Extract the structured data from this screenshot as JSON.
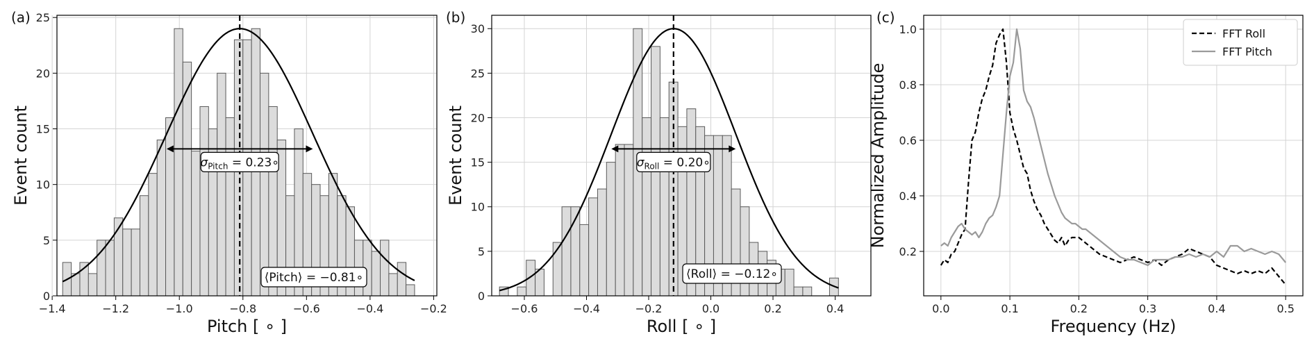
{
  "chart_data": [
    {
      "type": "bar",
      "panel_label": "(a)",
      "xlabel": "Pitch [ ∘ ]",
      "ylabel": "Event count",
      "xlim": [
        -1.385,
        -0.19
      ],
      "ylim": [
        0,
        25.2
      ],
      "xticks": [
        -1.4,
        -1.2,
        -1.0,
        -0.8,
        -0.6,
        -0.4,
        -0.2
      ],
      "xtick_labels": [
        "−1.4",
        "−1.2",
        "−1.0",
        "−0.8",
        "−0.6",
        "−0.4",
        "−0.2"
      ],
      "yticks": [
        0,
        5,
        10,
        15,
        20,
        25
      ],
      "ytick_labels": [
        "0",
        "5",
        "10",
        "15",
        "20",
        "25"
      ],
      "grid": true,
      "bin_start": -1.367,
      "bin_width": 0.027,
      "counts": [
        3,
        2,
        3,
        2,
        5,
        5,
        7,
        6,
        6,
        9,
        11,
        14,
        16,
        24,
        21,
        13,
        17,
        15,
        20,
        16,
        23,
        23,
        24,
        20,
        17,
        14,
        9,
        15,
        11,
        10,
        9,
        11,
        9,
        8,
        5,
        5,
        4,
        5,
        2,
        3,
        1
      ],
      "fit": {
        "mean": -0.81,
        "sigma": 0.23,
        "peak": 24
      },
      "mean_line": -0.81,
      "sigma_arrow": {
        "from": -1.04,
        "to": -0.58,
        "y": 13.2
      },
      "sigma_label": {
        "symbol": "σ",
        "sub": "Pitch",
        "text": " = 0.23∘"
      },
      "mean_label": "⟨Pitch⟩ = −0.81∘"
    },
    {
      "type": "bar",
      "panel_label": "(b)",
      "xlabel": "Roll [ ∘ ]",
      "ylabel": "Event count",
      "xlim": [
        -0.705,
        0.515
      ],
      "ylim": [
        0,
        31.5
      ],
      "xticks": [
        -0.6,
        -0.4,
        -0.2,
        0.0,
        0.2,
        0.4
      ],
      "xtick_labels": [
        "−0.6",
        "−0.4",
        "−0.2",
        "0.0",
        "0.2",
        "0.4"
      ],
      "yticks": [
        0,
        5,
        10,
        15,
        20,
        25,
        30
      ],
      "ytick_labels": [
        "0",
        "5",
        "10",
        "15",
        "20",
        "25",
        "30"
      ],
      "grid": true,
      "bin_start": -0.68,
      "bin_width": 0.0287,
      "counts": [
        1,
        0,
        1,
        4,
        3,
        0,
        6,
        10,
        10,
        8,
        11,
        12,
        15,
        17,
        17,
        30,
        20,
        28,
        20,
        24,
        19,
        21,
        19,
        18,
        18,
        18,
        12,
        10,
        6,
        5,
        4,
        3,
        3,
        1,
        1,
        0,
        0,
        2
      ],
      "fit": {
        "mean": -0.12,
        "sigma": 0.2,
        "peak": 30
      },
      "mean_line": -0.12,
      "sigma_arrow": {
        "from": -0.32,
        "to": 0.08,
        "y": 16.5
      },
      "sigma_label": {
        "symbol": "σ",
        "sub": "Roll",
        "text": " = 0.20∘"
      },
      "mean_label": "⟨Roll⟩ = −0.12∘"
    },
    {
      "type": "line",
      "panel_label": "(c)",
      "xlabel": "Frequency (Hz)",
      "ylabel": "Normalized Amplitude",
      "xlim": [
        -0.025,
        0.525
      ],
      "ylim": [
        0.04,
        1.05
      ],
      "xticks": [
        0.0,
        0.1,
        0.2,
        0.3,
        0.4,
        0.5
      ],
      "xtick_labels": [
        "0.0",
        "0.1",
        "0.2",
        "0.3",
        "0.4",
        "0.5"
      ],
      "yticks": [
        0.2,
        0.4,
        0.6,
        0.8,
        1.0
      ],
      "ytick_labels": [
        "0.2",
        "0.4",
        "0.6",
        "0.8",
        "1.0"
      ],
      "grid": true,
      "legend_position": "top-right",
      "series": [
        {
          "name": "FFT Roll",
          "style": "dashed",
          "color": "#000000",
          "x": [
            0.0,
            0.005,
            0.01,
            0.015,
            0.02,
            0.025,
            0.03,
            0.035,
            0.04,
            0.045,
            0.05,
            0.055,
            0.06,
            0.065,
            0.07,
            0.075,
            0.08,
            0.085,
            0.09,
            0.095,
            0.1,
            0.105,
            0.11,
            0.115,
            0.12,
            0.125,
            0.13,
            0.135,
            0.14,
            0.145,
            0.15,
            0.155,
            0.16,
            0.165,
            0.17,
            0.175,
            0.18,
            0.185,
            0.19,
            0.195,
            0.2,
            0.205,
            0.21,
            0.215,
            0.22,
            0.225,
            0.23,
            0.24,
            0.25,
            0.26,
            0.27,
            0.28,
            0.29,
            0.3,
            0.31,
            0.32,
            0.33,
            0.34,
            0.35,
            0.36,
            0.37,
            0.38,
            0.39,
            0.4,
            0.41,
            0.42,
            0.43,
            0.44,
            0.45,
            0.46,
            0.47,
            0.48,
            0.49,
            0.5
          ],
          "y": [
            0.15,
            0.17,
            0.16,
            0.19,
            0.2,
            0.23,
            0.26,
            0.28,
            0.45,
            0.6,
            0.63,
            0.7,
            0.75,
            0.78,
            0.83,
            0.87,
            0.95,
            0.98,
            1.0,
            0.88,
            0.7,
            0.64,
            0.6,
            0.55,
            0.5,
            0.48,
            0.42,
            0.38,
            0.35,
            0.33,
            0.3,
            0.28,
            0.26,
            0.24,
            0.23,
            0.25,
            0.22,
            0.24,
            0.25,
            0.25,
            0.25,
            0.24,
            0.23,
            0.22,
            0.21,
            0.2,
            0.19,
            0.18,
            0.17,
            0.16,
            0.17,
            0.18,
            0.17,
            0.16,
            0.17,
            0.15,
            0.17,
            0.18,
            0.19,
            0.21,
            0.2,
            0.19,
            0.18,
            0.15,
            0.14,
            0.13,
            0.12,
            0.13,
            0.12,
            0.13,
            0.12,
            0.14,
            0.11,
            0.08
          ]
        },
        {
          "name": "FFT Pitch",
          "style": "solid",
          "color": "#9a9a9a",
          "x": [
            0.0,
            0.005,
            0.01,
            0.015,
            0.02,
            0.025,
            0.03,
            0.035,
            0.04,
            0.045,
            0.05,
            0.055,
            0.06,
            0.065,
            0.07,
            0.075,
            0.08,
            0.085,
            0.09,
            0.095,
            0.1,
            0.105,
            0.11,
            0.115,
            0.12,
            0.125,
            0.13,
            0.135,
            0.14,
            0.145,
            0.15,
            0.155,
            0.16,
            0.165,
            0.17,
            0.175,
            0.18,
            0.185,
            0.19,
            0.195,
            0.2,
            0.205,
            0.21,
            0.22,
            0.23,
            0.24,
            0.25,
            0.26,
            0.27,
            0.28,
            0.29,
            0.3,
            0.31,
            0.32,
            0.33,
            0.34,
            0.35,
            0.36,
            0.37,
            0.38,
            0.39,
            0.4,
            0.41,
            0.42,
            0.43,
            0.44,
            0.45,
            0.46,
            0.47,
            0.48,
            0.49,
            0.5
          ],
          "y": [
            0.22,
            0.23,
            0.22,
            0.25,
            0.27,
            0.29,
            0.3,
            0.28,
            0.27,
            0.26,
            0.27,
            0.25,
            0.27,
            0.3,
            0.32,
            0.33,
            0.36,
            0.4,
            0.55,
            0.7,
            0.83,
            0.88,
            1.0,
            0.93,
            0.78,
            0.74,
            0.72,
            0.68,
            0.63,
            0.58,
            0.53,
            0.48,
            0.44,
            0.4,
            0.37,
            0.34,
            0.32,
            0.31,
            0.3,
            0.3,
            0.29,
            0.28,
            0.28,
            0.26,
            0.24,
            0.22,
            0.2,
            0.18,
            0.17,
            0.17,
            0.16,
            0.15,
            0.17,
            0.17,
            0.17,
            0.18,
            0.18,
            0.19,
            0.18,
            0.19,
            0.18,
            0.2,
            0.18,
            0.22,
            0.22,
            0.2,
            0.21,
            0.2,
            0.19,
            0.2,
            0.19,
            0.16
          ]
        }
      ]
    }
  ]
}
